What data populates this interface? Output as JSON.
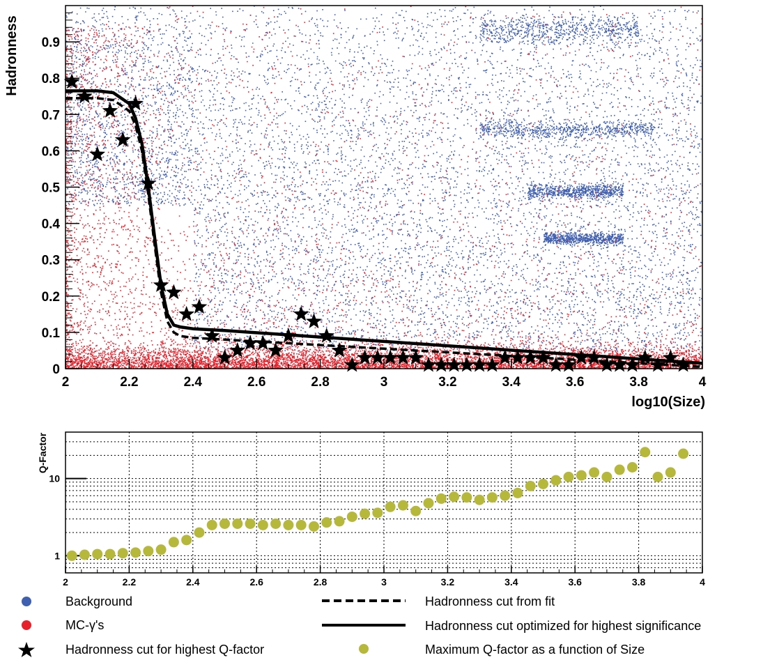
{
  "colors": {
    "background": "#3f5fb0",
    "mc_gamma": "#e8202a",
    "qfactor": "#b5b83a",
    "line": "#000000"
  },
  "chart_data": [
    {
      "type": "scatter",
      "xlabel": "log10(Size)",
      "ylabel": "Hadronness",
      "xlim": [
        2,
        4
      ],
      "ylim": [
        0,
        1
      ],
      "x_ticks": [
        "2",
        "2.2",
        "2.4",
        "2.6",
        "2.8",
        "3",
        "3.2",
        "3.4",
        "3.6",
        "3.8",
        "4"
      ],
      "y_ticks": [
        "0",
        "0.1",
        "0.2",
        "0.3",
        "0.4",
        "0.5",
        "0.6",
        "0.7",
        "0.8",
        "0.9"
      ],
      "grid": false,
      "series": [
        {
          "name": "Background",
          "marker": "dot",
          "density_note": "dense background points, concentrated at high hadronness"
        },
        {
          "name": "MC-γ's",
          "marker": "dot",
          "density_note": "dense gamma points, concentrated at low hadronness and low size"
        },
        {
          "name": "Hadronness cut for highest Q-factor",
          "marker": "star",
          "x": [
            2.02,
            2.06,
            2.1,
            2.14,
            2.18,
            2.22,
            2.26,
            2.3,
            2.34,
            2.38,
            2.42,
            2.46,
            2.5,
            2.54,
            2.58,
            2.62,
            2.66,
            2.7,
            2.74,
            2.78,
            2.82,
            2.86,
            2.9,
            2.94,
            2.98,
            3.02,
            3.06,
            3.1,
            3.14,
            3.18,
            3.22,
            3.26,
            3.3,
            3.34,
            3.38,
            3.42,
            3.46,
            3.5,
            3.54,
            3.58,
            3.62,
            3.66,
            3.7,
            3.74,
            3.78,
            3.82,
            3.86,
            3.9,
            3.94
          ],
          "y": [
            0.79,
            0.75,
            0.59,
            0.71,
            0.63,
            0.73,
            0.51,
            0.23,
            0.21,
            0.15,
            0.17,
            0.09,
            0.03,
            0.05,
            0.07,
            0.07,
            0.05,
            0.09,
            0.15,
            0.13,
            0.09,
            0.05,
            0.01,
            0.03,
            0.03,
            0.03,
            0.03,
            0.03,
            0.01,
            0.01,
            0.01,
            0.01,
            0.01,
            0.01,
            0.03,
            0.03,
            0.03,
            0.03,
            0.01,
            0.01,
            0.03,
            0.03,
            0.01,
            0.01,
            0.01,
            0.03,
            0.01,
            0.03,
            0.01
          ]
        },
        {
          "name": "Hadronness cut from fit",
          "marker": "dashed-line",
          "x": [
            2.0,
            2.1,
            2.15,
            2.2,
            2.22,
            2.24,
            2.26,
            2.28,
            2.3,
            2.32,
            2.34,
            2.36,
            2.4,
            2.5,
            3.0,
            3.5,
            4.0
          ],
          "y": [
            0.745,
            0.745,
            0.74,
            0.71,
            0.67,
            0.6,
            0.48,
            0.34,
            0.21,
            0.13,
            0.1,
            0.09,
            0.085,
            0.08,
            0.055,
            0.03,
            0.005
          ]
        },
        {
          "name": "Hadronness cut optimized for highest significance",
          "marker": "solid-line",
          "x": [
            2.0,
            2.1,
            2.15,
            2.2,
            2.22,
            2.24,
            2.26,
            2.28,
            2.3,
            2.32,
            2.34,
            2.36,
            2.4,
            2.5,
            3.0,
            3.5,
            4.0
          ],
          "y": [
            0.765,
            0.765,
            0.76,
            0.73,
            0.69,
            0.62,
            0.5,
            0.36,
            0.23,
            0.15,
            0.12,
            0.115,
            0.11,
            0.105,
            0.075,
            0.045,
            0.015
          ]
        }
      ]
    },
    {
      "type": "scatter",
      "xlabel": "",
      "ylabel": "Q-Factor",
      "xlim": [
        2,
        4
      ],
      "ylim": [
        0.6,
        40
      ],
      "yscale": "log",
      "x_ticks": [
        "2",
        "2.2",
        "2.4",
        "2.6",
        "2.8",
        "3",
        "3.2",
        "3.4",
        "3.6",
        "3.8",
        "4"
      ],
      "y_ticks": [
        "1",
        "10"
      ],
      "grid": true,
      "series": [
        {
          "name": "Maximum Q-factor as a function of Size",
          "marker": "circle",
          "x": [
            2.02,
            2.06,
            2.1,
            2.14,
            2.18,
            2.22,
            2.26,
            2.3,
            2.34,
            2.38,
            2.42,
            2.46,
            2.5,
            2.54,
            2.58,
            2.62,
            2.66,
            2.7,
            2.74,
            2.78,
            2.82,
            2.86,
            2.9,
            2.94,
            2.98,
            3.02,
            3.06,
            3.1,
            3.14,
            3.18,
            3.22,
            3.26,
            3.3,
            3.34,
            3.38,
            3.42,
            3.46,
            3.5,
            3.54,
            3.58,
            3.62,
            3.66,
            3.7,
            3.74,
            3.78,
            3.82,
            3.86,
            3.9,
            3.94
          ],
          "y": [
            1.0,
            1.03,
            1.05,
            1.05,
            1.08,
            1.1,
            1.15,
            1.2,
            1.5,
            1.6,
            2.0,
            2.5,
            2.6,
            2.6,
            2.6,
            2.5,
            2.6,
            2.5,
            2.5,
            2.4,
            2.7,
            2.8,
            3.2,
            3.5,
            3.6,
            4.3,
            4.5,
            3.8,
            4.8,
            5.5,
            5.8,
            5.7,
            5.3,
            5.7,
            6.0,
            6.5,
            8.0,
            8.5,
            9.5,
            10.5,
            11.0,
            12.0,
            10.5,
            13.0,
            14.0,
            22.0,
            10.5,
            12.0,
            21.0
          ]
        }
      ]
    }
  ]
}
